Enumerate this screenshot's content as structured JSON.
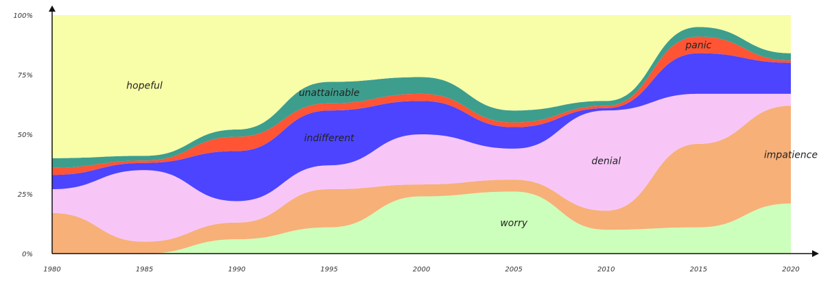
{
  "chart_data": {
    "type": "area",
    "stacked": true,
    "normalized": true,
    "x": [
      1980,
      1985,
      1990,
      1995,
      2000,
      2005,
      2010,
      2015,
      2020
    ],
    "x_tick_labels": [
      "1980",
      "1985",
      "1990",
      "1995",
      "2000",
      "2005",
      "2010",
      "2015",
      "2020"
    ],
    "y_tick_labels": [
      "0%",
      "25%",
      "50%",
      "75%",
      "100%"
    ],
    "ylim": [
      0,
      100
    ],
    "grid": false,
    "legend": "none (series labelled inline)",
    "series": [
      {
        "name": "worry",
        "color": "#ccffbb",
        "values": [
          0,
          0,
          6,
          11,
          24,
          26,
          10,
          11,
          21
        ]
      },
      {
        "name": "impatience",
        "color": "#f7b078",
        "values": [
          17,
          5,
          7,
          16,
          5,
          5,
          8,
          35,
          41
        ]
      },
      {
        "name": "denial",
        "color": "#f7c6f7",
        "values": [
          10,
          30,
          9,
          10,
          21,
          13,
          42,
          21,
          5
        ]
      },
      {
        "name": "indifferent",
        "color": "#4d44ff",
        "values": [
          6,
          3,
          21,
          23,
          14,
          9,
          1,
          17,
          13
        ]
      },
      {
        "name": "panic",
        "color": "#ff5535",
        "values": [
          3,
          1,
          6,
          3,
          3,
          2,
          1,
          7,
          1
        ]
      },
      {
        "name": "unattainable",
        "color": "#3d9e8e",
        "values": [
          4,
          2,
          3,
          9,
          7,
          5,
          2,
          4,
          3
        ]
      },
      {
        "name": "hopeful",
        "color": "#f8fda8",
        "values": [
          60,
          59,
          48,
          28,
          26,
          40,
          36,
          5,
          16
        ]
      }
    ]
  }
}
